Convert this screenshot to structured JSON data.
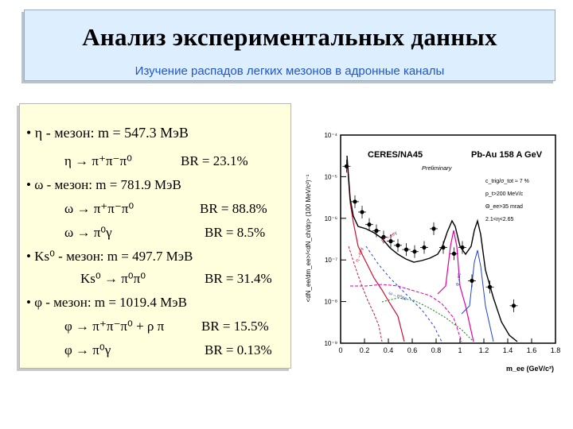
{
  "header": {
    "title": "Анализ экспериментальных данных",
    "subtitle": "Изучение распадов легких мезонов в адронные каналы"
  },
  "content": {
    "eta_meson": "• η - мезон: m = 547.3 МэВ",
    "eta_decay": "η → π⁺π⁻π⁰",
    "eta_br": "BR = 23.1%",
    "omega_meson": "• ω - мезон: m = 781.9 МэВ",
    "omega_decay1": "ω → π⁺π⁻π⁰",
    "omega_br1": "BR = 88.8%",
    "omega_decay2": "ω → π⁰γ",
    "omega_br2": "BR = 8.5%",
    "ks_meson": "• Ks⁰ - мезон: m = 497.7 МэВ",
    "ks_decay": "Ks⁰ → π⁰π⁰",
    "ks_br": "BR = 31.4%",
    "phi_meson": "• φ - мезон: m = 1019.4 МэВ",
    "phi_decay1": "φ → π⁺π⁻π⁰ + ρ π",
    "phi_br1": "BR = 15.5%",
    "phi_decay2": "φ → π⁰γ",
    "phi_br2": "BR = 0.13%"
  },
  "chart_data": {
    "type": "scatter",
    "title": "CERES/NA45",
    "subtitle": "Pb-Au 158 A GeV",
    "preliminary": "Preliminary",
    "cuts": [
      "c_trig/σ_tot ≈ 7 %",
      "p_t>200 MeV/c",
      "Θ_ee>35 mrad",
      "2.1<η<2.65"
    ],
    "xlabel": "m_ee (GeV/c²)",
    "ylabel": "<dN_ee/dm_ee>/<dN_ch/dη>  (100 MeV/c²)⁻¹",
    "xlim": [
      0,
      1.8
    ],
    "ylim_log10": [
      -9,
      -4
    ],
    "x_ticks": [
      "0",
      "0.2",
      "0.4",
      "0.6",
      "0.8",
      "1",
      "1.2",
      "1.4",
      "1.6",
      "1.8"
    ],
    "y_ticks": [
      "10⁻⁴",
      "10⁻⁵",
      "10⁻⁶",
      "10⁻⁷",
      "10⁻⁸",
      "10⁻⁹"
    ],
    "series": [
      {
        "values_log10": [
          [
            0.05,
            -4.75
          ],
          [
            0.12,
            -5.6
          ],
          [
            0.18,
            -5.85
          ],
          [
            0.24,
            -6.15
          ],
          [
            0.3,
            -6.3
          ],
          [
            0.36,
            -6.45
          ],
          [
            0.42,
            -6.55
          ],
          [
            0.48,
            -6.65
          ],
          [
            0.55,
            -6.75
          ],
          [
            0.62,
            -6.8
          ],
          [
            0.7,
            -6.7
          ],
          [
            0.78,
            -6.25
          ],
          [
            0.86,
            -6.7
          ],
          [
            0.95,
            -6.85
          ],
          [
            1.02,
            -6.7
          ],
          [
            1.1,
            -7.5
          ],
          [
            1.25,
            -7.65
          ],
          [
            1.45,
            -8.1
          ]
        ]
      }
    ],
    "curve_labels": [
      "η→ee",
      "π⁰→eeγ",
      "ρ→ee",
      "ω→ee",
      "φ→ee",
      "η'→eeγ",
      "ω→π⁰ee",
      "η→eeγ"
    ]
  }
}
